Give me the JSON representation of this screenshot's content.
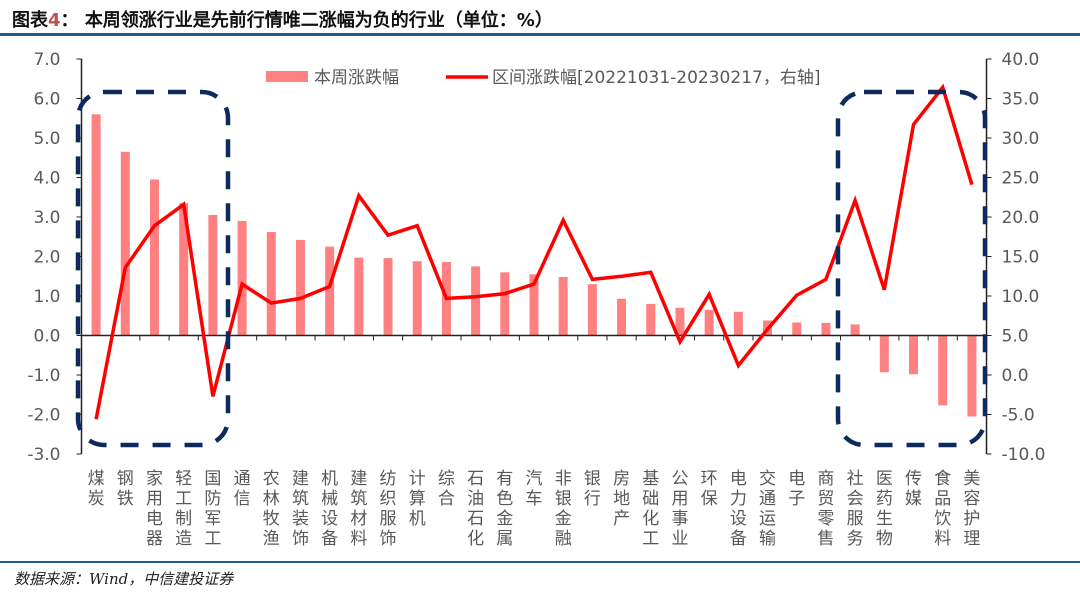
{
  "title_prefix": "图表",
  "title_num": "4",
  "title_sep": "：",
  "title_text": "本周领涨行业是先前行情唯二涨幅为负的行业（单位：%）",
  "source": "数据来源：Wind，中信建投证券",
  "colors": {
    "bar": "#ff8080",
    "line": "#ff0000",
    "highlight_box": "#0d2a5e",
    "rule": "#1f5a8a"
  },
  "chart_data": {
    "type": "bar+line",
    "categories": [
      "煤炭",
      "钢铁",
      "家用电器",
      "轻工制造",
      "国防军工",
      "通信",
      "农林牧渔",
      "建筑装饰",
      "机械设备",
      "建筑材料",
      "纺织服饰",
      "计算机",
      "综合",
      "石油石化",
      "有色金属",
      "汽车",
      "非银金融",
      "银行",
      "房地产",
      "基础化工",
      "公用事业",
      "环保",
      "电力设备",
      "交通运输",
      "电子",
      "商贸零售",
      "社会服务",
      "医药生物",
      "传媒",
      "食品饮料",
      "美容护理"
    ],
    "series": [
      {
        "name": "本周涨跌幅",
        "type": "bar",
        "axis": "left",
        "values": [
          5.6,
          4.65,
          3.95,
          3.35,
          3.05,
          2.9,
          2.62,
          2.42,
          2.25,
          1.97,
          1.96,
          1.88,
          1.86,
          1.75,
          1.6,
          1.55,
          1.48,
          1.3,
          0.93,
          0.8,
          0.7,
          0.65,
          0.6,
          0.38,
          0.33,
          0.32,
          0.28,
          -0.93,
          -0.98,
          -1.77,
          -2.05
        ]
      },
      {
        "name": "区间涨跌幅[20221031-20230217，右轴]",
        "type": "line",
        "axis": "right",
        "values": [
          -5.6,
          13.6,
          18.9,
          21.6,
          -2.7,
          11.5,
          9.1,
          9.7,
          11.2,
          22.7,
          17.7,
          18.9,
          9.7,
          9.9,
          10.3,
          11.5,
          19.6,
          12.1,
          12.5,
          13.0,
          4.2,
          10.2,
          1.2,
          5.8,
          10.1,
          12.1,
          22.1,
          10.8,
          31.7,
          36.4,
          24.1
        ]
      }
    ],
    "left_axis": {
      "ylim": [
        -3,
        7
      ],
      "ticks": [
        "7.0",
        "6.0",
        "5.0",
        "4.0",
        "3.0",
        "2.0",
        "1.0",
        "0.0",
        "-1.0",
        "-2.0",
        "-3.0"
      ]
    },
    "right_axis": {
      "ylim": [
        -10,
        40
      ],
      "ticks": [
        "40.0",
        "35.0",
        "30.0",
        "25.0",
        "20.0",
        "15.0",
        "10.0",
        "5.0",
        "0.0",
        "-5.0",
        "-10.0"
      ]
    },
    "legend": "top",
    "grid": false,
    "highlights": [
      {
        "from": "煤炭",
        "to": "国防军工"
      },
      {
        "from": "社会服务",
        "to": "美容护理"
      }
    ]
  }
}
